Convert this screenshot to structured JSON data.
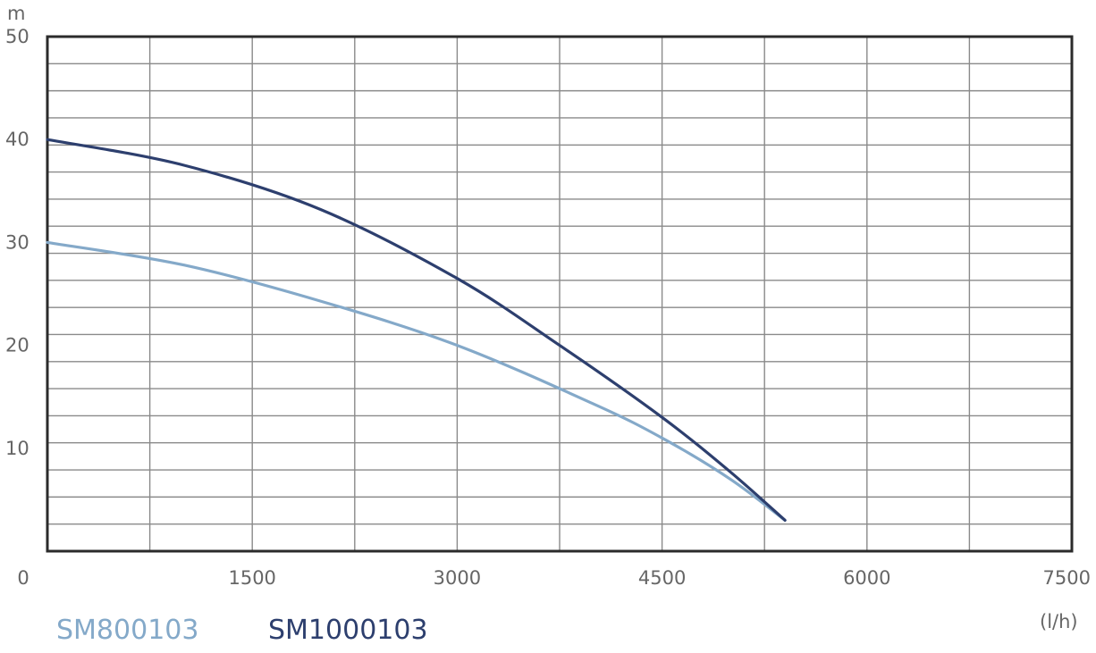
{
  "chart_data": {
    "type": "line",
    "title": "",
    "xlabel": "",
    "ylabel": "",
    "x_unit": "(l/h)",
    "y_unit": "m",
    "xlim": [
      0,
      7500
    ],
    "ylim": [
      0,
      50
    ],
    "x_ticks": [
      "0",
      "1500",
      "3000",
      "4500",
      "6000",
      "7500"
    ],
    "y_ticks": [
      "10",
      "20",
      "30",
      "40",
      "50"
    ],
    "grid": true,
    "legend": "bottom-left",
    "series": [
      {
        "name": "SM800103",
        "color": "#84a9c9",
        "x": [
          0,
          1000,
          2000,
          3000,
          4000,
          4500,
          5000,
          5400
        ],
        "y": [
          30,
          27.8,
          24.3,
          20,
          14.3,
          11,
          7,
          3
        ]
      },
      {
        "name": "SM1000103",
        "color": "#2d3f6e",
        "x": [
          0,
          1000,
          2000,
          3000,
          3750,
          4500,
          5000,
          5400
        ],
        "y": [
          40,
          37.5,
          33.2,
          26.5,
          20,
          13,
          7.7,
          3
        ]
      }
    ]
  }
}
